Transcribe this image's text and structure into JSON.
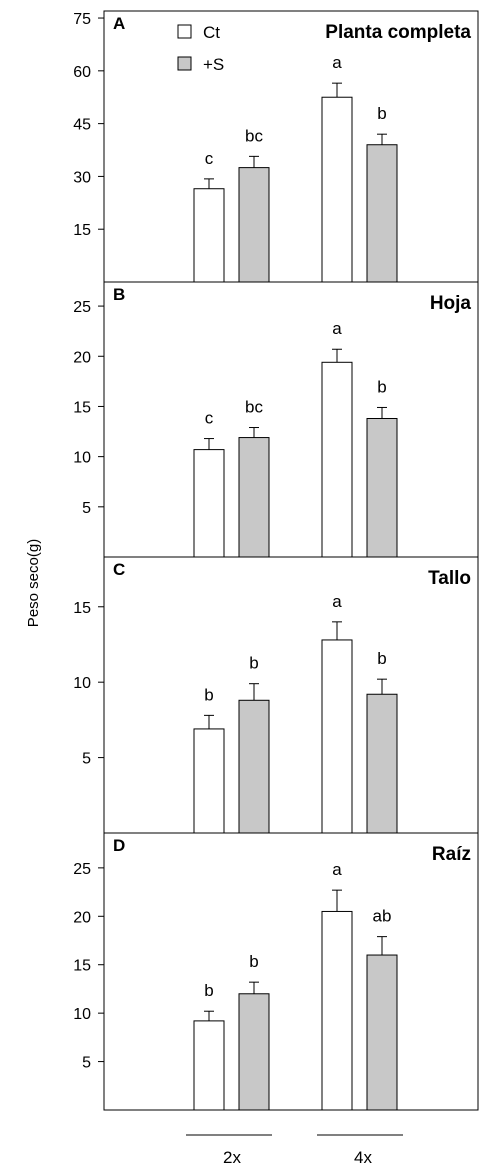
{
  "chart_data": {
    "type": "bar",
    "ylabel": "Peso seco(g)",
    "groups": [
      "2x",
      "4x"
    ],
    "series": [
      {
        "name": "Ct",
        "color": "#ffffff"
      },
      {
        "name": "+S",
        "color": "#c8c8c8"
      }
    ],
    "panels": [
      {
        "letter": "A",
        "title": "Planta completa",
        "ylim": [
          0,
          77
        ],
        "yticks": [
          15,
          30,
          45,
          60,
          75
        ],
        "legend": true,
        "bars": [
          {
            "group": "2x",
            "series": "Ct",
            "value": 26.5,
            "error": 2.8,
            "label": "c"
          },
          {
            "group": "2x",
            "series": "+S",
            "value": 32.5,
            "error": 3.2,
            "label": "bc"
          },
          {
            "group": "4x",
            "series": "Ct",
            "value": 52.5,
            "error": 4.0,
            "label": "a"
          },
          {
            "group": "4x",
            "series": "+S",
            "value": 39.0,
            "error": 3.0,
            "label": "b"
          }
        ]
      },
      {
        "letter": "B",
        "title": "Hoja",
        "ylim": [
          0,
          27.4
        ],
        "yticks": [
          5,
          10,
          15,
          20,
          25
        ],
        "legend": false,
        "bars": [
          {
            "group": "2x",
            "series": "Ct",
            "value": 10.7,
            "error": 1.1,
            "label": "c"
          },
          {
            "group": "2x",
            "series": "+S",
            "value": 11.9,
            "error": 1.0,
            "label": "bc"
          },
          {
            "group": "4x",
            "series": "Ct",
            "value": 19.4,
            "error": 1.3,
            "label": "a"
          },
          {
            "group": "4x",
            "series": "+S",
            "value": 13.8,
            "error": 1.1,
            "label": "b"
          }
        ]
      },
      {
        "letter": "C",
        "title": "Tallo",
        "ylim": [
          0,
          18.3
        ],
        "yticks": [
          5,
          10,
          15
        ],
        "legend": false,
        "bars": [
          {
            "group": "2x",
            "series": "Ct",
            "value": 6.9,
            "error": 0.9,
            "label": "b"
          },
          {
            "group": "2x",
            "series": "+S",
            "value": 8.8,
            "error": 1.1,
            "label": "b"
          },
          {
            "group": "4x",
            "series": "Ct",
            "value": 12.8,
            "error": 1.2,
            "label": "a"
          },
          {
            "group": "4x",
            "series": "+S",
            "value": 9.2,
            "error": 1.0,
            "label": "b"
          }
        ]
      },
      {
        "letter": "D",
        "title": "Raíz",
        "ylim": [
          0,
          28.6
        ],
        "yticks": [
          5,
          10,
          15,
          20,
          25
        ],
        "legend": false,
        "bars": [
          {
            "group": "2x",
            "series": "Ct",
            "value": 9.2,
            "error": 1.0,
            "label": "b"
          },
          {
            "group": "2x",
            "series": "+S",
            "value": 12.0,
            "error": 1.2,
            "label": "b"
          },
          {
            "group": "4x",
            "series": "Ct",
            "value": 20.5,
            "error": 2.2,
            "label": "a"
          },
          {
            "group": "4x",
            "series": "+S",
            "value": 16.0,
            "error": 1.9,
            "label": "ab"
          }
        ]
      }
    ]
  }
}
